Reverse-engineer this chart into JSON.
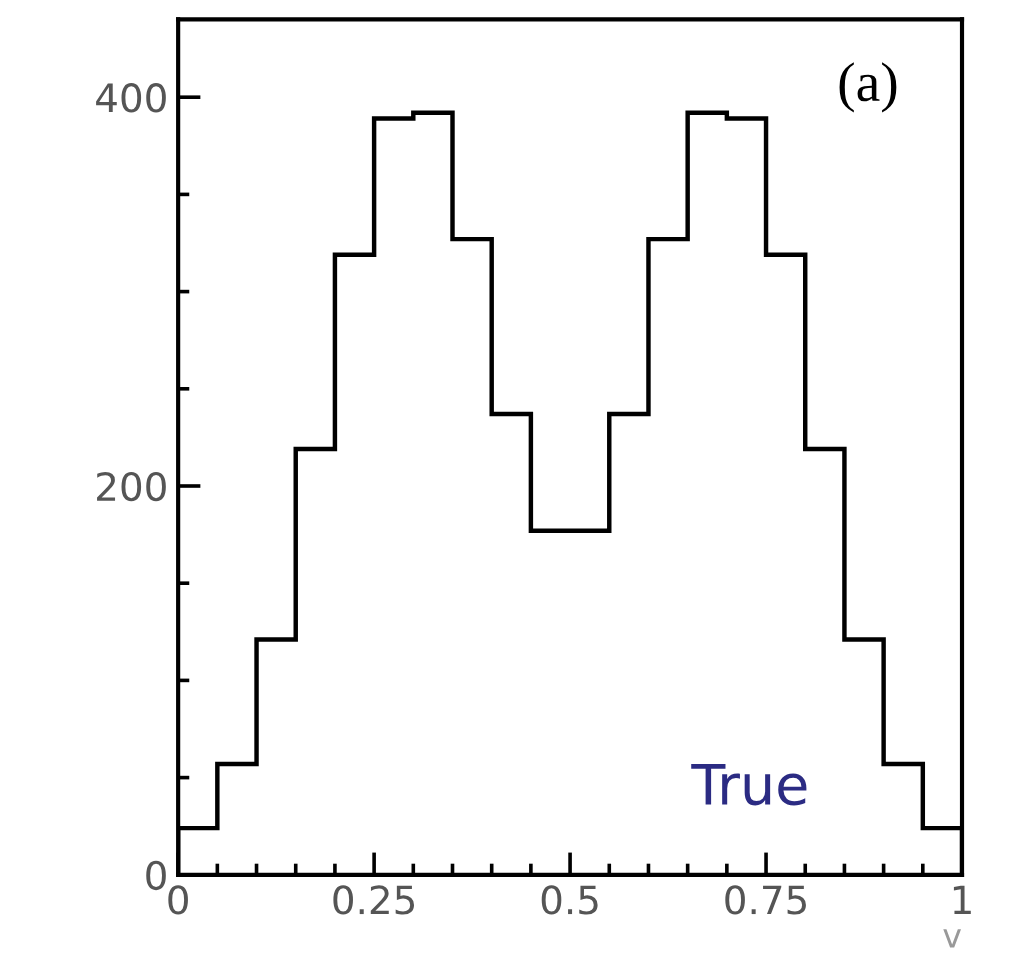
{
  "chart_data": {
    "type": "histogram",
    "xlabel": "v",
    "bins": [
      0,
      0.05,
      0.1,
      0.15,
      0.2,
      0.25,
      0.3,
      0.35,
      0.4,
      0.45,
      0.5,
      0.55,
      0.6,
      0.65,
      0.7,
      0.75,
      0.8,
      0.85,
      0.9,
      0.95,
      1
    ],
    "values": [
      24,
      57,
      121,
      219,
      319,
      389,
      392,
      327,
      237,
      177,
      177,
      237,
      327,
      392,
      389,
      319,
      219,
      121,
      57,
      24
    ],
    "color": "#000000",
    "xlim": [
      0,
      1
    ],
    "xticks": [
      0,
      0.25,
      0.5,
      0.75,
      1
    ],
    "ylim": [
      0,
      440
    ],
    "yticks": [
      0,
      200,
      400
    ],
    "annotations": [
      "(a)",
      "True"
    ],
    "grid": false
  }
}
